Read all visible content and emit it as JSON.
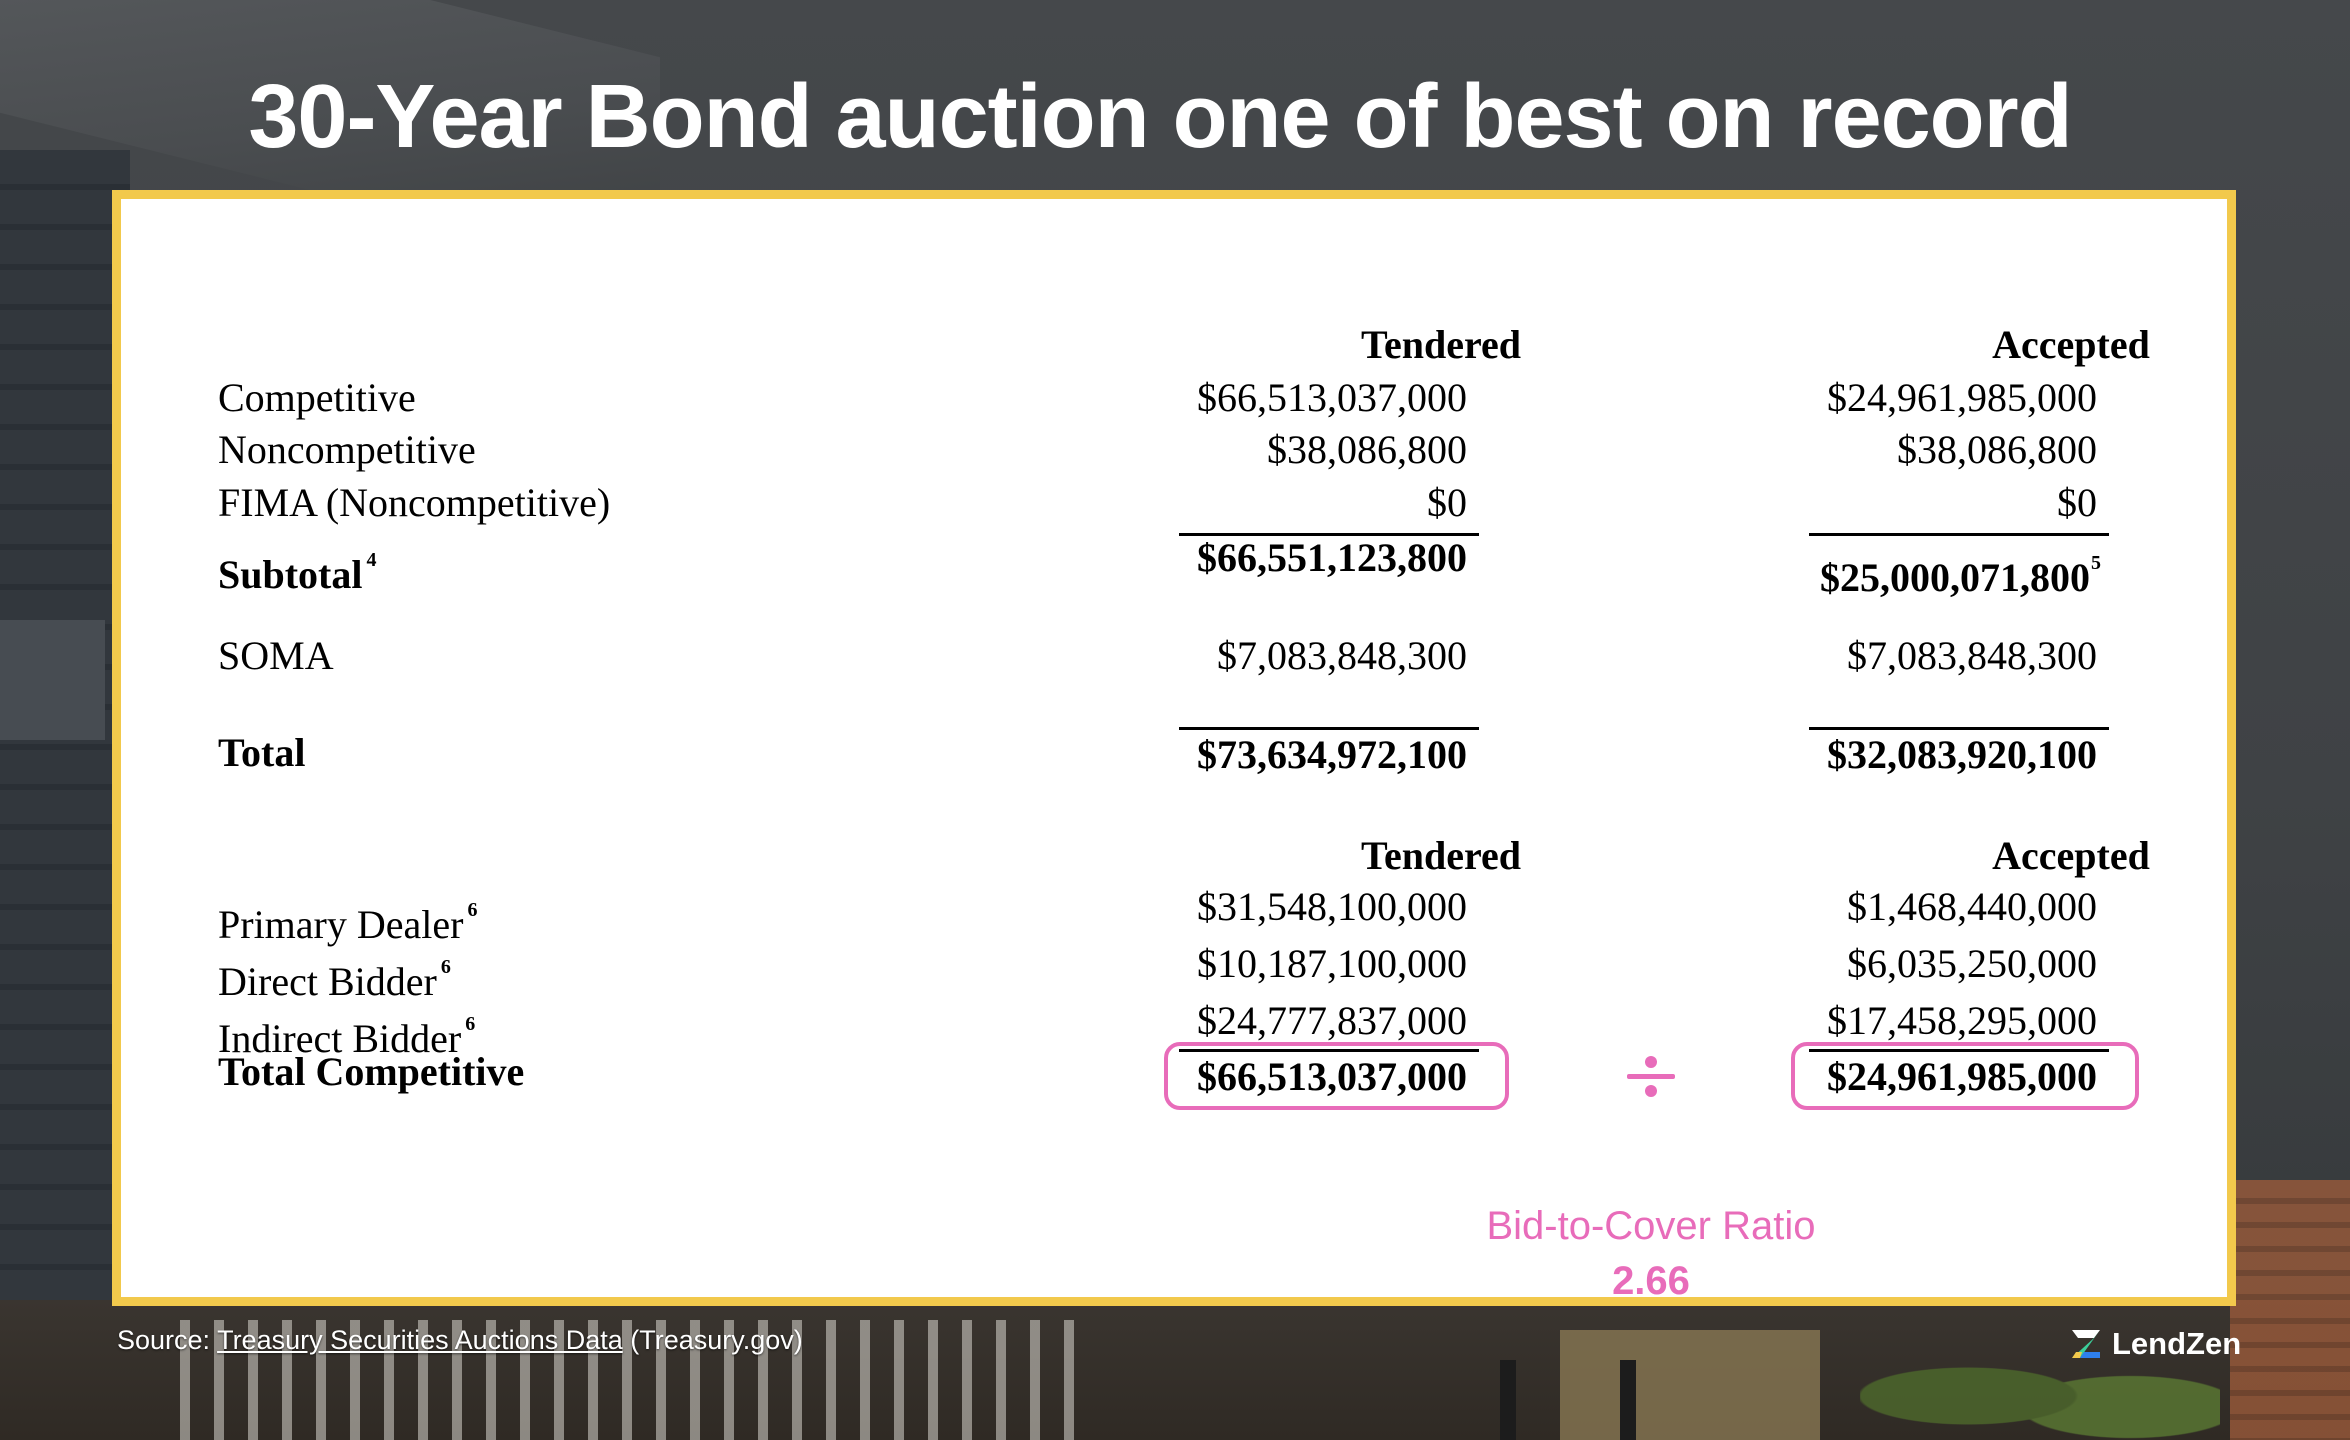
{
  "title": "30-Year Bond auction one of best on record",
  "table1": {
    "header_tendered": "Tendered",
    "header_accepted": "Accepted",
    "rows": [
      {
        "label": "Competitive",
        "tendered": "$66,513,037,000",
        "accepted": "$24,961,985,000"
      },
      {
        "label": "Noncompetitive",
        "tendered": "$38,086,800",
        "accepted": "$38,086,800"
      },
      {
        "label": "FIMA (Noncompetitive)",
        "tendered": "$0",
        "accepted": "$0"
      }
    ],
    "subtotal": {
      "label": "Subtotal",
      "note": "4",
      "tendered": "$66,551,123,800",
      "accepted": "$25,000,071,800",
      "accepted_note": "5"
    },
    "soma": {
      "label": "SOMA",
      "tendered": "$7,083,848,300",
      "accepted": "$7,083,848,300"
    },
    "total": {
      "label": "Total",
      "tendered": "$73,634,972,100",
      "accepted": "$32,083,920,100"
    }
  },
  "table2": {
    "header_tendered": "Tendered",
    "header_accepted": "Accepted",
    "rows": [
      {
        "label": "Primary Dealer",
        "note": "6",
        "tendered": "$31,548,100,000",
        "accepted": "$1,468,440,000"
      },
      {
        "label": "Direct Bidder",
        "note": "6",
        "tendered": "$10,187,100,000",
        "accepted": "$6,035,250,000"
      },
      {
        "label": "Indirect Bidder",
        "note": "6",
        "tendered": "$24,777,837,000",
        "accepted": "$17,458,295,000"
      }
    ],
    "total_competitive": {
      "label": "Total Competitive",
      "tendered": "$66,513,037,000",
      "accepted": "$24,961,985,000"
    }
  },
  "ratio": {
    "label": "Bid-to-Cover Ratio",
    "value": "2.66"
  },
  "footer": {
    "source_prefix": "Source: ",
    "source_link": "Treasury Securities Auctions Data",
    "source_suffix": " (Treasury.gov)",
    "brand": "LendZen"
  },
  "colors": {
    "accent_pink": "#e86cba",
    "frame_yellow": "#f2c94c"
  }
}
